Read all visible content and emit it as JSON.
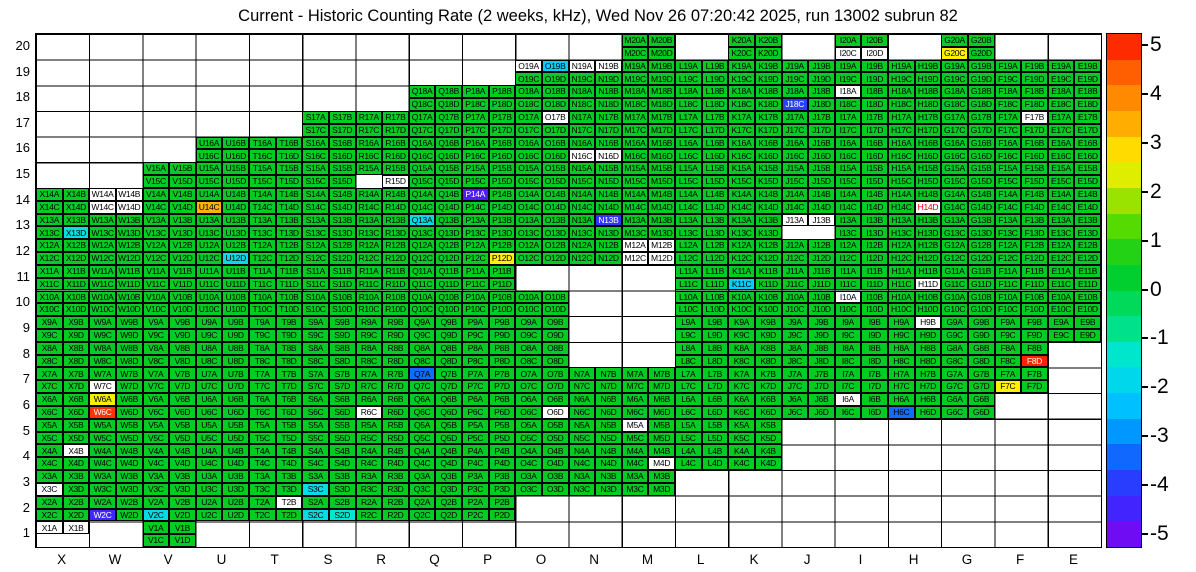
{
  "chart_data": {
    "type": "heatmap",
    "title": "Current - Historic Counting Rate (2 weeks, kHz), Wed Nov 26 07:20:42 2025, run 13002 subrun 82",
    "columns": [
      "X",
      "W",
      "V",
      "U",
      "T",
      "S",
      "R",
      "Q",
      "P",
      "O",
      "N",
      "M",
      "L",
      "K",
      "J",
      "I",
      "H",
      "G",
      "F",
      "E"
    ],
    "y_tick_labels": [
      "20",
      "19",
      "18",
      "17",
      "16",
      "15",
      "14",
      "13",
      "12",
      "11",
      "10",
      "9",
      "8",
      "7",
      "6",
      "5",
      "4",
      "3",
      "2",
      "1"
    ],
    "quadrants": [
      "A",
      "B",
      "C",
      "D"
    ],
    "colorbar": {
      "min": -5,
      "max": 5,
      "tick_labels": [
        "5",
        "4",
        "3",
        "2",
        "1",
        "0",
        "-1",
        "-2",
        "-3",
        "-4",
        "-5"
      ]
    },
    "default_value": 0.4,
    "row_columns": {
      "20": [
        "M",
        "K",
        "I",
        "G"
      ],
      "19": [
        "O",
        "N",
        "M",
        "L",
        "K",
        "J",
        "I",
        "H",
        "G",
        "F",
        "E"
      ],
      "18": [
        "Q",
        "P",
        "O",
        "N",
        "M",
        "L",
        "K",
        "J",
        "I",
        "H",
        "G",
        "F",
        "E"
      ],
      "17": [
        "S",
        "R",
        "Q",
        "P",
        "O",
        "N",
        "M",
        "L",
        "K",
        "J",
        "I",
        "H",
        "G",
        "F",
        "E"
      ],
      "16": [
        "U",
        "T",
        "S",
        "R",
        "Q",
        "P",
        "O",
        "N",
        "M",
        "L",
        "K",
        "J",
        "I",
        "H",
        "G",
        "F",
        "E"
      ],
      "15": [
        "V",
        "U",
        "T",
        "S",
        "R",
        "Q",
        "P",
        "O",
        "N",
        "M",
        "L",
        "K",
        "J",
        "I",
        "H",
        "G",
        "F",
        "E"
      ],
      "14": [
        "X",
        "W",
        "V",
        "U",
        "T",
        "S",
        "R",
        "Q",
        "P",
        "O",
        "N",
        "M",
        "L",
        "K",
        "J",
        "I",
        "H",
        "G",
        "F",
        "E"
      ],
      "13": [
        "X",
        "W",
        "V",
        "U",
        "T",
        "S",
        "R",
        "Q",
        "P",
        "O",
        "N",
        "M",
        "L",
        "K",
        "J",
        "I",
        "H",
        "G",
        "F",
        "E"
      ],
      "12": [
        "X",
        "W",
        "V",
        "U",
        "T",
        "S",
        "R",
        "Q",
        "P",
        "O",
        "N",
        "M",
        "L",
        "K",
        "J",
        "I",
        "H",
        "G",
        "F",
        "E"
      ],
      "11": [
        "X",
        "W",
        "V",
        "U",
        "T",
        "S",
        "R",
        "Q",
        "P",
        "L",
        "K",
        "J",
        "I",
        "H",
        "G",
        "F",
        "E"
      ],
      "10": [
        "X",
        "W",
        "V",
        "U",
        "T",
        "S",
        "R",
        "Q",
        "P",
        "O",
        "L",
        "K",
        "J",
        "I",
        "H",
        "G",
        "F",
        "E"
      ],
      "9": [
        "X",
        "W",
        "V",
        "U",
        "T",
        "S",
        "R",
        "Q",
        "P",
        "O",
        "L",
        "K",
        "J",
        "I",
        "H",
        "G",
        "F",
        "E"
      ],
      "8": [
        "X",
        "W",
        "V",
        "U",
        "T",
        "S",
        "R",
        "Q",
        "P",
        "O",
        "L",
        "K",
        "J",
        "I",
        "H",
        "G",
        "F"
      ],
      "7": [
        "X",
        "W",
        "V",
        "U",
        "T",
        "S",
        "R",
        "Q",
        "P",
        "O",
        "N",
        "M",
        "L",
        "K",
        "J",
        "I",
        "H",
        "G",
        "F"
      ],
      "6": [
        "X",
        "W",
        "V",
        "U",
        "T",
        "S",
        "R",
        "Q",
        "P",
        "O",
        "N",
        "M",
        "L",
        "K",
        "J",
        "I",
        "H",
        "G"
      ],
      "5": [
        "X",
        "W",
        "V",
        "U",
        "T",
        "S",
        "R",
        "Q",
        "P",
        "O",
        "N",
        "M",
        "L",
        "K"
      ],
      "4": [
        "X",
        "W",
        "V",
        "U",
        "T",
        "S",
        "R",
        "Q",
        "P",
        "O",
        "N",
        "M",
        "L",
        "K"
      ],
      "3": [
        "X",
        "W",
        "V",
        "U",
        "T",
        "S",
        "R",
        "Q",
        "P",
        "O",
        "N",
        "M"
      ],
      "2": [
        "X",
        "W",
        "V",
        "U",
        "T",
        "S",
        "R",
        "Q",
        "P"
      ],
      "1": [
        "X",
        "V"
      ]
    },
    "value_overrides": {
      "G20C": 2.5,
      "O19B": -2.0,
      "J18C": -3.6,
      "P14A": -4.4,
      "U14C": 3.2,
      "N13B": -3.9,
      "Q13A": -1.6,
      "X13D": -1.5,
      "P12D": 2.5,
      "U12D": -1.7,
      "K11C": -2.0,
      "F8D": 4.8,
      "Q7A": -3.2,
      "F7C": 2.5,
      "W6A": 2.4,
      "W6C": 4.7,
      "H6C": -3.2,
      "S3C": -1.6,
      "W2C": -4.2,
      "V2C": -1.6,
      "S2C": -1.6,
      "S2D": -1.3
    },
    "dead_channels": [
      "I20C",
      "I20D",
      "O19A",
      "N19A",
      "N19B",
      "I18A",
      "O17B",
      "F17B",
      "N16C",
      "N16D",
      "R15D",
      "W14A",
      "W14B",
      "W14C",
      "W14D",
      "J13A",
      "J13B",
      "M12A",
      "M12B",
      "M12C",
      "M12D",
      "H11D",
      "I10A",
      "H9B",
      "W7C",
      "R6C",
      "O6D",
      "I6A",
      "M5A",
      "M4D",
      "X4B",
      "X3C",
      "T2B",
      "X1A",
      "X1B"
    ],
    "dead_channels_red_text": [
      "H14D"
    ],
    "absent_quadrants": [
      "R15C",
      "J13C",
      "J13D",
      "X1C",
      "X1D"
    ],
    "palette_stops": [
      [
        -5.0,
        "#8800ee"
      ],
      [
        -4.3,
        "#4422ff"
      ],
      [
        -3.6,
        "#2244ff"
      ],
      [
        -2.9,
        "#008cff"
      ],
      [
        -2.1,
        "#00ccff"
      ],
      [
        -1.3,
        "#00e6d2"
      ],
      [
        -0.6,
        "#00e078"
      ],
      [
        0.4,
        "#00cc22"
      ],
      [
        1.3,
        "#5adb00"
      ],
      [
        2.0,
        "#bee800"
      ],
      [
        2.5,
        "#fff200"
      ],
      [
        3.2,
        "#ffb200"
      ],
      [
        4.0,
        "#ff7700"
      ],
      [
        4.7,
        "#ff3300"
      ],
      [
        5.0,
        "#ff0000"
      ]
    ]
  }
}
